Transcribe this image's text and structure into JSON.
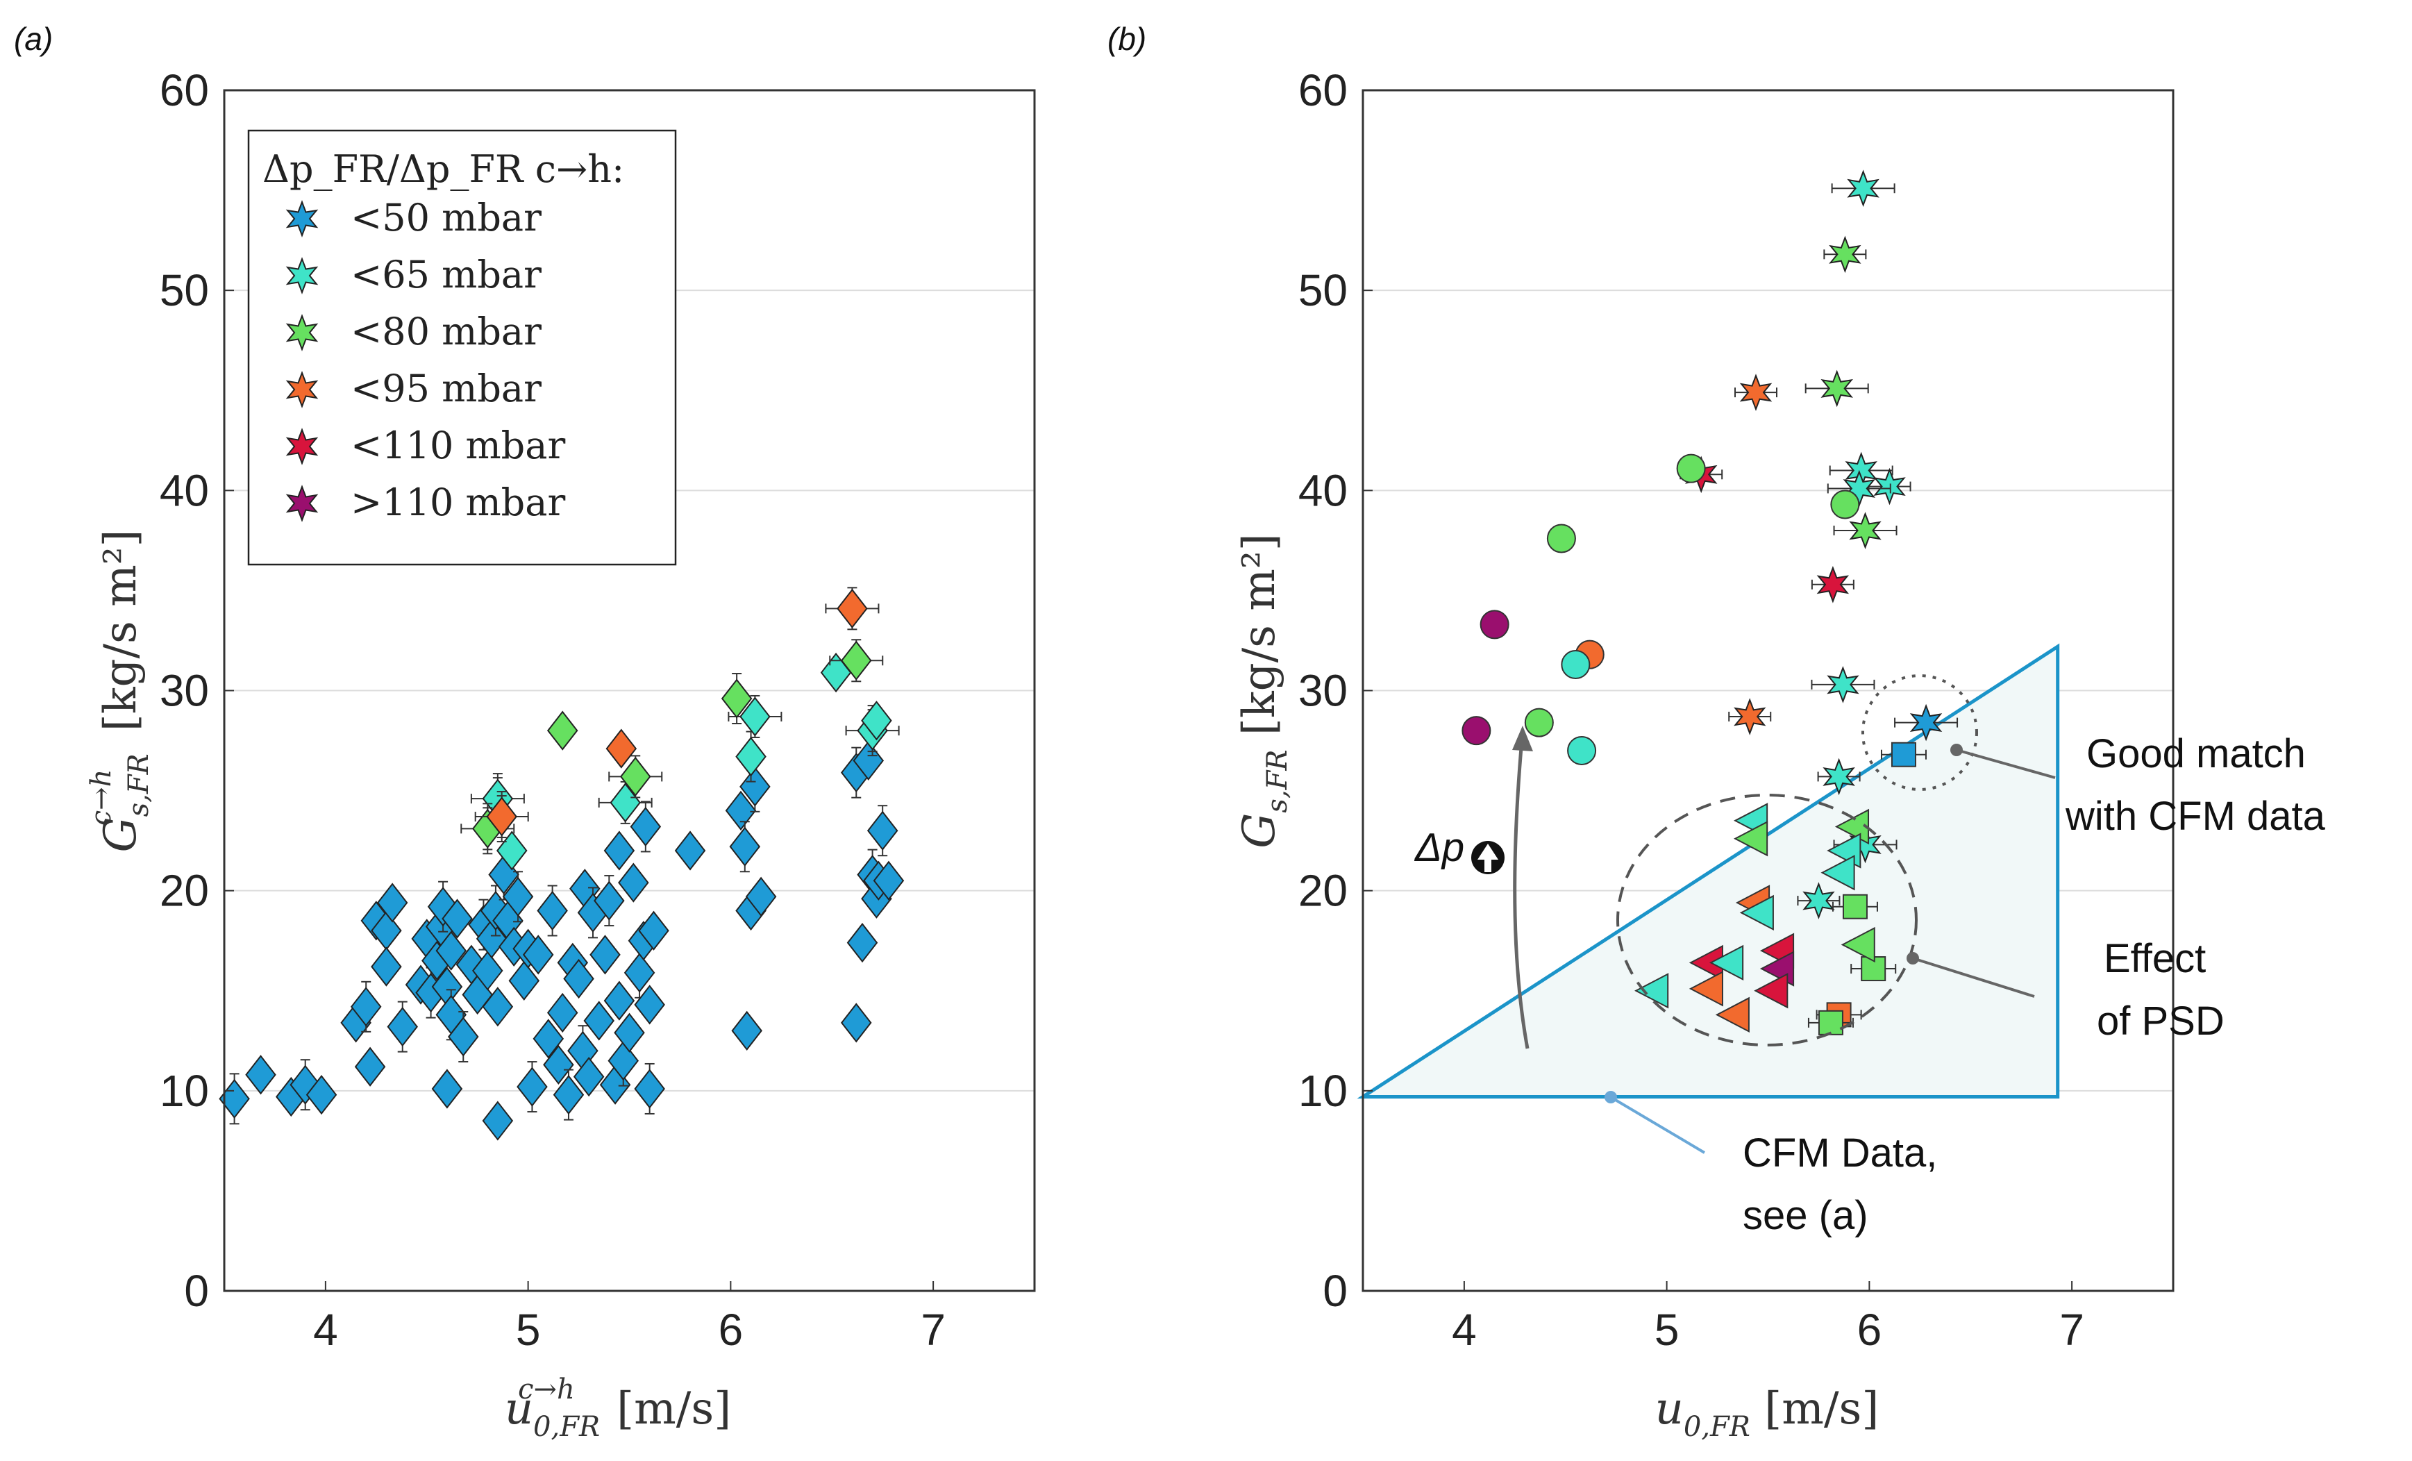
{
  "figure": {
    "panel_a_label": "(a)",
    "panel_b_label": "(b)"
  },
  "colors": {
    "lt50": "#1f9bd6",
    "lt65": "#3fe3c8",
    "lt80": "#66e060",
    "lt95": "#f26a2e",
    "lt110": "#d8143c",
    "gt110": "#9a0f6e",
    "cfm_line": "#1b94c9",
    "cfm_fill": "#f1f8f8"
  },
  "chart_data": [
    {
      "type": "scatter",
      "panel": "(a)",
      "xlabel": "u0,FR c→h [m/s]",
      "ylabel": "Gs,FR c→h [kg/s m2]",
      "xlim": [
        3.5,
        7.5
      ],
      "ylim": [
        0,
        60
      ],
      "xticks": [
        "4",
        "5",
        "6",
        "7"
      ],
      "yticks": [
        "0",
        "10",
        "20",
        "30",
        "40",
        "50",
        "60"
      ],
      "legend_title": "Δp_FR/Δp_FR c→h:",
      "legend": [
        {
          "key": "lt50",
          "label": "<50 mbar"
        },
        {
          "key": "lt65",
          "label": "<65 mbar"
        },
        {
          "key": "lt80",
          "label": "<80 mbar"
        },
        {
          "key": "lt95",
          "label": "<95 mbar"
        },
        {
          "key": "lt110",
          "label": "<110 mbar"
        },
        {
          "key": "gt110",
          "label": ">110 mbar"
        }
      ],
      "grid": "horizontal",
      "series": [
        {
          "name": "<50 mbar",
          "color_key": "lt50",
          "marker": "diamond",
          "points": [
            [
              3.55,
              9.6
            ],
            [
              3.68,
              10.8
            ],
            [
              3.83,
              9.7
            ],
            [
              3.9,
              10.3
            ],
            [
              3.98,
              9.8
            ],
            [
              4.15,
              13.4
            ],
            [
              4.2,
              14.2
            ],
            [
              4.22,
              11.2
            ],
            [
              4.25,
              18.5
            ],
            [
              4.3,
              18.0
            ],
            [
              4.3,
              16.2
            ],
            [
              4.33,
              19.4
            ],
            [
              4.38,
              13.2
            ],
            [
              4.47,
              15.3
            ],
            [
              4.5,
              17.6
            ],
            [
              4.52,
              14.9
            ],
            [
              4.55,
              16.5
            ],
            [
              4.57,
              18.2
            ],
            [
              4.58,
              19.2
            ],
            [
              4.6,
              10.1
            ],
            [
              4.6,
              15.2
            ],
            [
              4.62,
              13.8
            ],
            [
              4.62,
              17.0
            ],
            [
              4.65,
              18.6
            ],
            [
              4.68,
              12.7
            ],
            [
              4.72,
              16.3
            ],
            [
              4.75,
              14.8
            ],
            [
              4.78,
              18.3
            ],
            [
              4.8,
              16.0
            ],
            [
              4.82,
              17.6
            ],
            [
              4.84,
              19.0
            ],
            [
              4.85,
              14.2
            ],
            [
              4.85,
              8.5
            ],
            [
              4.88,
              20.8
            ],
            [
              4.9,
              18.5
            ],
            [
              4.93,
              17.2
            ],
            [
              4.95,
              19.7
            ],
            [
              4.98,
              15.5
            ],
            [
              5.0,
              17.1
            ],
            [
              5.02,
              10.2
            ],
            [
              5.05,
              16.8
            ],
            [
              5.1,
              12.6
            ],
            [
              5.12,
              19.0
            ],
            [
              5.15,
              11.3
            ],
            [
              5.17,
              13.9
            ],
            [
              5.2,
              9.8
            ],
            [
              5.22,
              16.4
            ],
            [
              5.25,
              15.6
            ],
            [
              5.27,
              12.0
            ],
            [
              5.28,
              20.1
            ],
            [
              5.3,
              10.7
            ],
            [
              5.32,
              18.9
            ],
            [
              5.35,
              13.5
            ],
            [
              5.38,
              16.8
            ],
            [
              5.4,
              19.5
            ],
            [
              5.43,
              10.3
            ],
            [
              5.45,
              14.5
            ],
            [
              5.47,
              11.5
            ],
            [
              5.5,
              12.9
            ],
            [
              5.52,
              20.4
            ],
            [
              5.55,
              15.9
            ],
            [
              5.57,
              17.5
            ],
            [
              5.6,
              14.3
            ],
            [
              5.6,
              10.1
            ],
            [
              5.62,
              18.0
            ],
            [
              5.45,
              22.0
            ],
            [
              5.58,
              23.2
            ],
            [
              5.8,
              22.0
            ],
            [
              6.05,
              24.0
            ],
            [
              6.07,
              22.2
            ],
            [
              6.08,
              13.0
            ],
            [
              6.1,
              19.0
            ],
            [
              6.12,
              25.2
            ],
            [
              6.15,
              19.7
            ],
            [
              6.62,
              13.4
            ],
            [
              6.62,
              25.9
            ],
            [
              6.65,
              17.4
            ],
            [
              6.68,
              26.5
            ],
            [
              6.7,
              20.8
            ],
            [
              6.72,
              19.6
            ],
            [
              6.73,
              20.5
            ],
            [
              6.75,
              23.0
            ],
            [
              6.78,
              20.5
            ]
          ]
        },
        {
          "name": "<65 mbar",
          "color_key": "lt65",
          "marker": "diamond",
          "points": [
            [
              4.85,
              24.6
            ],
            [
              4.92,
              22.0
            ],
            [
              5.48,
              24.4
            ],
            [
              6.1,
              26.7
            ],
            [
              6.12,
              28.7
            ],
            [
              6.52,
              30.9
            ],
            [
              6.7,
              28.0
            ],
            [
              6.72,
              28.5
            ]
          ]
        },
        {
          "name": "<80 mbar",
          "color_key": "lt80",
          "marker": "diamond",
          "points": [
            [
              4.8,
              23.1
            ],
            [
              5.17,
              28.0
            ],
            [
              5.53,
              25.7
            ],
            [
              6.03,
              29.6
            ],
            [
              6.62,
              31.5
            ]
          ]
        },
        {
          "name": "<95 mbar",
          "color_key": "lt95",
          "marker": "diamond",
          "points": [
            [
              4.87,
              23.7
            ],
            [
              5.46,
              27.1
            ],
            [
              6.6,
              34.1
            ]
          ]
        }
      ]
    },
    {
      "type": "scatter",
      "panel": "(b)",
      "xlabel": "u0,FR [m/s]",
      "ylabel": "Gs,FR [kg/s m2]",
      "xlim": [
        3.5,
        7.5
      ],
      "ylim": [
        0,
        60
      ],
      "xticks": [
        "4",
        "5",
        "6",
        "7"
      ],
      "yticks": [
        "0",
        "10",
        "20",
        "30",
        "40",
        "50",
        "60"
      ],
      "grid": "horizontal",
      "cfm_region": [
        [
          3.5,
          9.7
        ],
        [
          6.93,
          9.7
        ],
        [
          6.93,
          32.2
        ]
      ],
      "series": [
        {
          "name": "stars",
          "marker": "star",
          "points": [
            [
              5.97,
              55.1,
              "lt65"
            ],
            [
              5.88,
              51.8,
              "lt80"
            ],
            [
              5.84,
              45.1,
              "lt80"
            ],
            [
              5.44,
              44.9,
              "lt95"
            ],
            [
              5.96,
              41.0,
              "lt65"
            ],
            [
              6.1,
              40.2,
              "lt65"
            ],
            [
              5.95,
              40.1,
              "lt65"
            ],
            [
              5.17,
              40.8,
              "lt110"
            ],
            [
              5.98,
              38.0,
              "lt80"
            ],
            [
              5.82,
              35.3,
              "lt110"
            ],
            [
              5.87,
              30.3,
              "lt65"
            ],
            [
              5.41,
              28.7,
              "lt95"
            ],
            [
              6.28,
              28.4,
              "lt50"
            ],
            [
              5.85,
              25.7,
              "lt65"
            ],
            [
              5.98,
              22.3,
              "lt65"
            ],
            [
              5.75,
              19.5,
              "lt65"
            ]
          ]
        },
        {
          "name": "circles",
          "marker": "circle",
          "points": [
            [
              5.12,
              41.1,
              "lt80"
            ],
            [
              5.88,
              39.3,
              "lt80"
            ],
            [
              4.48,
              37.6,
              "lt80"
            ],
            [
              4.15,
              33.3,
              "gt110"
            ],
            [
              4.62,
              31.8,
              "lt95"
            ],
            [
              4.55,
              31.3,
              "lt65"
            ],
            [
              4.06,
              28.0,
              "gt110"
            ],
            [
              4.37,
              28.4,
              "lt80"
            ],
            [
              4.58,
              27.0,
              "lt65"
            ]
          ]
        },
        {
          "name": "squares",
          "marker": "square",
          "points": [
            [
              6.17,
              26.8,
              "lt50"
            ],
            [
              5.93,
              19.2,
              "lt80"
            ],
            [
              6.02,
              16.1,
              "lt80"
            ],
            [
              5.85,
              13.8,
              "lt95"
            ],
            [
              5.81,
              13.4,
              "lt80"
            ]
          ]
        },
        {
          "name": "triangles",
          "marker": "triangle-left",
          "points": [
            [
              5.42,
              23.5,
              "lt65"
            ],
            [
              5.42,
              22.6,
              "lt80"
            ],
            [
              5.92,
              23.2,
              "lt80"
            ],
            [
              5.88,
              22.0,
              "lt65"
            ],
            [
              5.85,
              20.9,
              "lt65"
            ],
            [
              5.43,
              19.4,
              "lt95"
            ],
            [
              5.45,
              18.9,
              "lt65"
            ],
            [
              5.55,
              17.0,
              "lt110"
            ],
            [
              5.2,
              16.4,
              "lt110"
            ],
            [
              5.55,
              16.1,
              "gt110"
            ],
            [
              5.3,
              16.4,
              "lt65"
            ],
            [
              5.2,
              15.1,
              "lt95"
            ],
            [
              5.52,
              15.0,
              "lt110"
            ],
            [
              4.93,
              15.0,
              "lt65"
            ],
            [
              5.33,
              13.8,
              "lt95"
            ],
            [
              5.95,
              17.3,
              "lt80"
            ]
          ]
        }
      ],
      "annotations": {
        "cfm_label": [
          "CFM Data,",
          "see (a)"
        ],
        "good_match": [
          "Good match",
          "with CFM data"
        ],
        "psd": [
          "Effect",
          "of PSD"
        ],
        "dp_label": "Δp"
      }
    }
  ]
}
